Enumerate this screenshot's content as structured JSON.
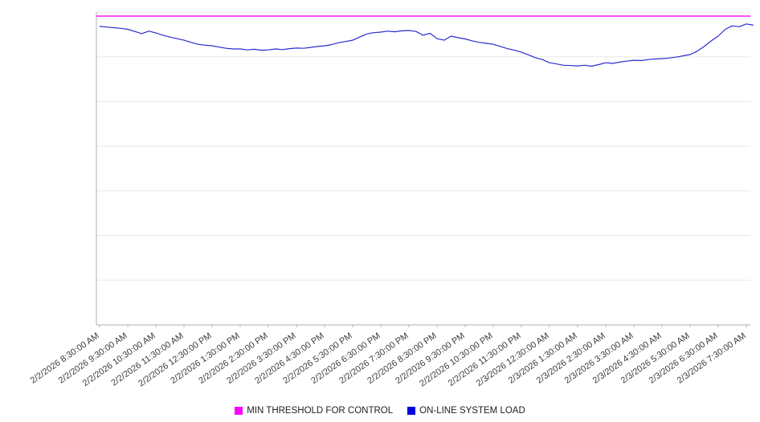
{
  "chart_data": {
    "type": "line",
    "title": "",
    "xlabel": "",
    "ylabel": "",
    "ylim": [
      0,
      100
    ],
    "gridline_count": 7,
    "grid": true,
    "legend_position": "bottom",
    "x_tick_labels": [
      "2/2/2026 8:30:00 AM",
      "2/2/2026 9:30:00 AM",
      "2/2/2026 10:30:00 AM",
      "2/2/2026 11:30:00 AM",
      "2/2/2026 12:30:00 PM",
      "2/2/2026 1:30:00 PM",
      "2/2/2026 2:30:00 PM",
      "2/2/2026 3:30:00 PM",
      "2/2/2026 4:30:00 PM",
      "2/2/2026 5:30:00 PM",
      "2/2/2026 6:30:00 PM",
      "2/2/2026 7:30:00 PM",
      "2/2/2026 8:30:00 PM",
      "2/2/2026 9:30:00 PM",
      "2/2/2026 10:30:00 PM",
      "2/2/2026 11:30:00 PM",
      "2/3/2026 12:30:00 AM",
      "2/3/2026 1:30:00 AM",
      "2/3/2026 2:30:00 AM",
      "2/3/2026 3:30:00 AM",
      "2/3/2026 4:30:00 AM",
      "2/3/2026 5:30:00 AM",
      "2/3/2026 6:30:00 AM",
      "2/3/2026 7:30:00 AM"
    ],
    "points_per_interval": 4,
    "series": [
      {
        "name": "MIN THRESHOLD FOR CONTROL",
        "color": "#ff00ff",
        "constant": 98.7
      },
      {
        "name": "ON-LINE SYSTEM LOAD",
        "color": "#2b2bd0",
        "values": [
          95.4,
          95.2,
          95.0,
          94.8,
          94.5,
          93.8,
          93.1,
          93.9,
          93.3,
          92.6,
          92.0,
          91.5,
          91.0,
          90.3,
          89.7,
          89.4,
          89.2,
          88.8,
          88.4,
          88.2,
          88.2,
          87.9,
          88.1,
          87.8,
          87.9,
          88.2,
          88.0,
          88.3,
          88.5,
          88.4,
          88.7,
          89.0,
          89.2,
          89.6,
          90.2,
          90.6,
          91.0,
          92.0,
          93.0,
          93.4,
          93.6,
          93.9,
          93.7,
          94.0,
          94.1,
          93.8,
          92.6,
          93.2,
          91.5,
          91.0,
          92.3,
          91.8,
          91.4,
          90.8,
          90.3,
          90.0,
          89.7,
          89.0,
          88.3,
          87.8,
          87.2,
          86.3,
          85.4,
          84.8,
          83.8,
          83.4,
          83.0,
          82.9,
          82.8,
          83.0,
          82.7,
          83.2,
          83.8,
          83.6,
          84.0,
          84.3,
          84.6,
          84.5,
          84.8,
          85.0,
          85.1,
          85.3,
          85.6,
          86.0,
          86.4,
          87.5,
          89.0,
          90.8,
          92.3,
          94.5,
          95.6,
          95.3,
          96.2,
          95.8
        ]
      }
    ]
  },
  "legend": {
    "items": [
      {
        "label": "MIN THRESHOLD FOR CONTROL",
        "color": "#ff00ff"
      },
      {
        "label": "ON-LINE SYSTEM LOAD",
        "color": "#0000e0"
      }
    ]
  },
  "colors": {
    "gridline": "#e8e8e8",
    "axis": "#b0b0b0",
    "tick_text": "#3c3c3c"
  }
}
